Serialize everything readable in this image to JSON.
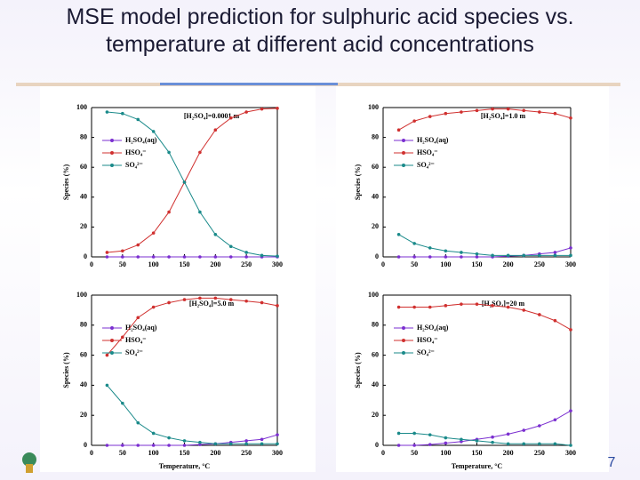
{
  "slide": {
    "title": "MSE model prediction for sulphuric acid species vs. temperature at different acid concentrations",
    "page_number": "7"
  },
  "chart_data": [
    {
      "type": "line",
      "annotation": "[H₂SO₄]=0.0001 m",
      "ylabel": "Species (%)",
      "x": [
        25,
        50,
        75,
        100,
        125,
        150,
        175,
        200,
        225,
        250,
        275,
        300
      ],
      "series": [
        {
          "name": "H₂SO₄(aq)",
          "color": "#7b2fd0",
          "values": [
            0,
            0,
            0,
            0,
            0,
            0,
            0,
            0,
            0,
            0,
            0,
            0
          ]
        },
        {
          "name": "HSO₄⁻",
          "color": "#d0302f",
          "values": [
            3,
            4,
            8,
            16,
            30,
            50,
            70,
            85,
            93,
            97,
            99,
            99.5
          ]
        },
        {
          "name": "SO₄²⁻",
          "color": "#1a8a8a",
          "values": [
            97,
            96,
            92,
            84,
            70,
            50,
            30,
            15,
            7,
            3,
            1,
            0.5
          ]
        }
      ],
      "xlim": [
        0,
        300
      ],
      "ylim": [
        0,
        100
      ],
      "xticks": [
        0,
        50,
        100,
        150,
        200,
        250,
        300
      ],
      "yticks": [
        0,
        20,
        40,
        60,
        80,
        100
      ]
    },
    {
      "type": "line",
      "annotation": "[H₂SO₄]=1.0 m",
      "ylabel": "Species (%)",
      "x": [
        25,
        50,
        75,
        100,
        125,
        150,
        175,
        200,
        225,
        250,
        275,
        300
      ],
      "series": [
        {
          "name": "H₂SO₄(aq)",
          "color": "#7b2fd0",
          "values": [
            0,
            0,
            0,
            0,
            0,
            0,
            0,
            0.5,
            1,
            2,
            3,
            6
          ]
        },
        {
          "name": "HSO₄⁻",
          "color": "#d0302f",
          "values": [
            85,
            91,
            94,
            96,
            97,
            98,
            99,
            99,
            98,
            97,
            96,
            93
          ]
        },
        {
          "name": "SO₄²⁻",
          "color": "#1a8a8a",
          "values": [
            15,
            9,
            6,
            4,
            3,
            2,
            1,
            1,
            1,
            1,
            1,
            1
          ]
        }
      ],
      "xlim": [
        0,
        300
      ],
      "ylim": [
        0,
        100
      ],
      "xticks": [
        0,
        50,
        100,
        150,
        200,
        250,
        300
      ],
      "yticks": [
        0,
        20,
        40,
        60,
        80,
        100
      ]
    },
    {
      "type": "line",
      "annotation": "[H₂SO₄]=5.0 m",
      "ylabel": "Species (%)",
      "xlabel": "Temperature, °C",
      "x": [
        25,
        50,
        75,
        100,
        125,
        150,
        175,
        200,
        225,
        250,
        275,
        300
      ],
      "series": [
        {
          "name": "H₂SO₄(aq)",
          "color": "#7b2fd0",
          "values": [
            0,
            0,
            0,
            0,
            0,
            0,
            0.5,
            1,
            2,
            3,
            4,
            7
          ]
        },
        {
          "name": "HSO₄⁻",
          "color": "#d0302f",
          "values": [
            60,
            72,
            85,
            92,
            95,
            97,
            98,
            98,
            97,
            96,
            95,
            93
          ]
        },
        {
          "name": "SO₄²⁻",
          "color": "#1a8a8a",
          "values": [
            40,
            28,
            15,
            8,
            5,
            3,
            2,
            1,
            1,
            1,
            1,
            1
          ]
        }
      ],
      "xlim": [
        0,
        300
      ],
      "ylim": [
        0,
        100
      ],
      "xticks": [
        0,
        50,
        100,
        150,
        200,
        250,
        300
      ],
      "yticks": [
        0,
        20,
        40,
        60,
        80,
        100
      ]
    },
    {
      "type": "line",
      "annotation": "[H₂SO₄]=20 m",
      "ylabel": "Species (%)",
      "xlabel": "Temperature, °C",
      "x": [
        25,
        50,
        75,
        100,
        125,
        150,
        175,
        200,
        225,
        250,
        275,
        300
      ],
      "series": [
        {
          "name": "H₂SO₄(aq)",
          "color": "#7b2fd0",
          "values": [
            0,
            0,
            0.5,
            1.5,
            2.5,
            4,
            5.5,
            7.5,
            10,
            13,
            17,
            23
          ]
        },
        {
          "name": "HSO₄⁻",
          "color": "#d0302f",
          "values": [
            92,
            92,
            92,
            93,
            94,
            94,
            93,
            92,
            90,
            87,
            83,
            77
          ]
        },
        {
          "name": "SO₄²⁻",
          "color": "#1a8a8a",
          "values": [
            8,
            8,
            7,
            5,
            4,
            3,
            2,
            1,
            1,
            1,
            1,
            0
          ]
        }
      ],
      "xlim": [
        0,
        300
      ],
      "ylim": [
        0,
        100
      ],
      "xticks": [
        0,
        50,
        100,
        150,
        200,
        250,
        300
      ],
      "yticks": [
        0,
        20,
        40,
        60,
        80,
        100
      ]
    }
  ]
}
